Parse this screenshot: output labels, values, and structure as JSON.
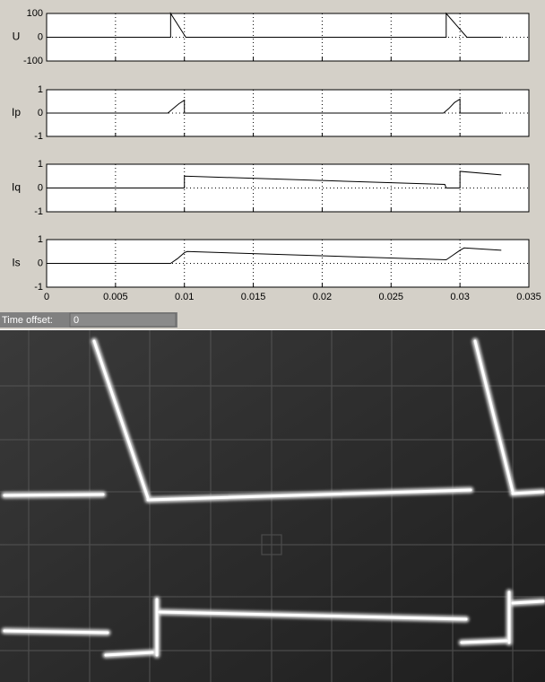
{
  "chart_data": [
    {
      "type": "line",
      "y_label": "U",
      "x": [
        0,
        0.009,
        0.009,
        0.0101,
        0.029,
        0.029,
        0.0305,
        0.033
      ],
      "series": [
        {
          "color": "#000000",
          "values": [
            0,
            0,
            100,
            0,
            0,
            100,
            0,
            0
          ]
        }
      ],
      "xlim": [
        0,
        0.035
      ],
      "xticks": [
        0,
        0.005,
        0.01,
        0.015,
        0.02,
        0.025,
        0.03,
        0.035
      ],
      "ylim": [
        -100,
        100
      ],
      "yticks": [
        -100,
        0,
        100
      ],
      "grid": true,
      "show_xtick_labels": false
    },
    {
      "type": "line",
      "y_label": "Ip",
      "x": [
        0,
        0.0088,
        0.0092,
        0.0096,
        0.01,
        0.01,
        0.0288,
        0.0292,
        0.0296,
        0.03,
        0.03,
        0.033
      ],
      "series": [
        {
          "color": "#000000",
          "values": [
            0,
            0,
            0.2,
            0.4,
            0.55,
            0,
            0,
            0.2,
            0.45,
            0.6,
            0,
            0
          ]
        }
      ],
      "xlim": [
        0,
        0.035
      ],
      "xticks": [
        0,
        0.005,
        0.01,
        0.015,
        0.02,
        0.025,
        0.03,
        0.035
      ],
      "ylim": [
        -1,
        1
      ],
      "yticks": [
        -1,
        0,
        1
      ],
      "grid": true,
      "show_xtick_labels": false
    },
    {
      "type": "line",
      "y_label": "Iq",
      "x": [
        0,
        0.01,
        0.01,
        0.0289,
        0.029,
        0.03,
        0.03,
        0.033
      ],
      "series": [
        {
          "color": "#000000",
          "values": [
            0,
            0,
            0.5,
            0.15,
            0,
            0,
            0.7,
            0.55
          ]
        }
      ],
      "xlim": [
        0,
        0.035
      ],
      "xticks": [
        0,
        0.005,
        0.01,
        0.015,
        0.02,
        0.025,
        0.03,
        0.035
      ],
      "ylim": [
        -1,
        1
      ],
      "yticks": [
        -1,
        0,
        1
      ],
      "grid": true,
      "show_xtick_labels": false
    },
    {
      "type": "line",
      "y_label": "Is",
      "x": [
        0,
        0.009,
        0.0095,
        0.01,
        0.0102,
        0.029,
        0.0295,
        0.03,
        0.0303,
        0.033
      ],
      "series": [
        {
          "color": "#000000",
          "values": [
            0,
            0,
            0.2,
            0.45,
            0.5,
            0.15,
            0.35,
            0.55,
            0.65,
            0.55
          ]
        }
      ],
      "xlim": [
        0,
        0.035
      ],
      "xticks": [
        0,
        0.005,
        0.01,
        0.015,
        0.02,
        0.025,
        0.03,
        0.035
      ],
      "ylim": [
        -1,
        1
      ],
      "yticks": [
        -1,
        0,
        1
      ],
      "grid": true,
      "show_xtick_labels": true
    }
  ],
  "time_offset_label": "Time offset:",
  "time_offset_value": "0"
}
